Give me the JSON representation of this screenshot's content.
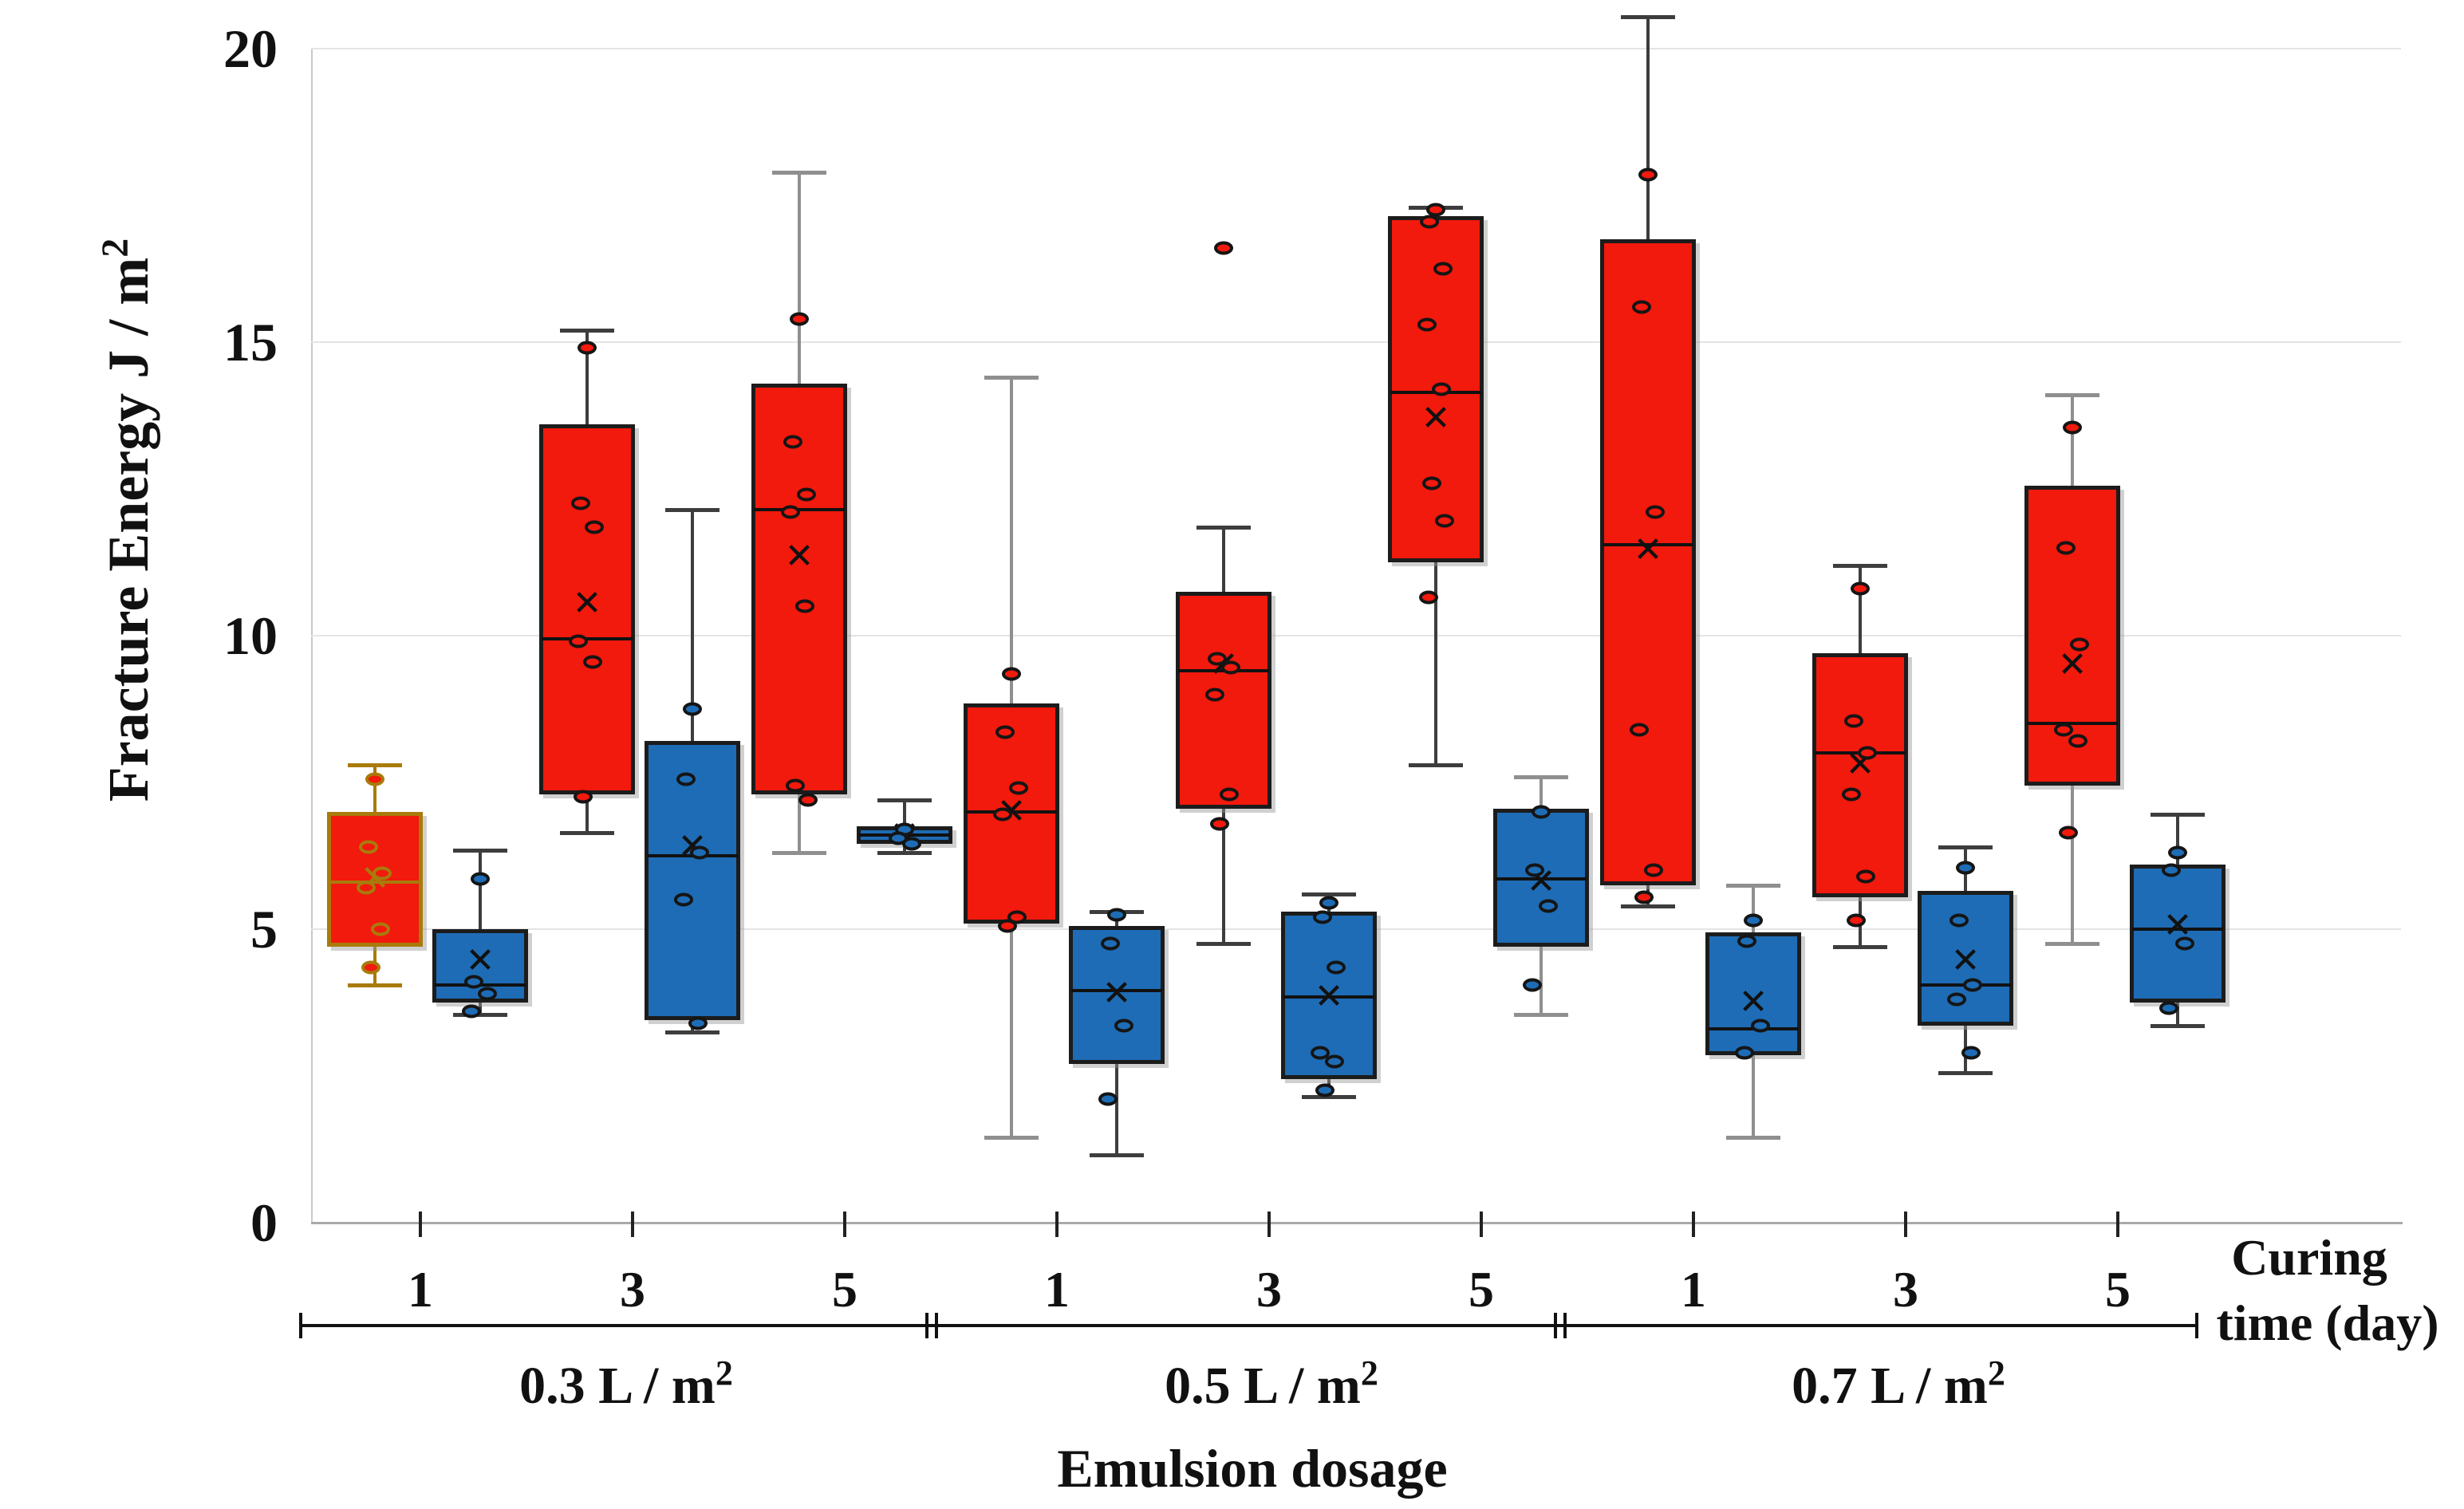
{
  "chart": {
    "superscript": "2",
    "ylabel_base": "Fracture Energy J / m",
    "xlabel": "Emulsion dosage",
    "right_axis_label_line1": "Curing",
    "right_axis_label_line2": "time (day)",
    "groups": [
      {
        "label_base": "0.3 L / m",
        "curing_days": [
          "1",
          "3",
          "5"
        ]
      },
      {
        "label_base": "0.5 L / m",
        "curing_days": [
          "1",
          "3",
          "5"
        ]
      },
      {
        "label_base": "0.7 L / m",
        "curing_days": [
          "1",
          "3",
          "5"
        ]
      }
    ]
  },
  "chart_data": {
    "type": "boxplot",
    "ylabel": "Fracture Energy J / m2",
    "xlabel": "Emulsion dosage",
    "x_axis_note": "Curing time (day)",
    "ylim": [
      0,
      20.5
    ],
    "y_ticks": [
      0,
      5,
      10,
      15,
      20
    ],
    "dosages": [
      "0.3",
      "0.5",
      "0.7"
    ],
    "days": [
      "1",
      "3",
      "5"
    ],
    "colors": {
      "red_fill": "#f2190d",
      "blue_fill": "#1e6cb5",
      "box_border": "#1c1c1c",
      "orange_border": "#a87b0b",
      "whisker_dark": "#3d3d3d",
      "whisker_gray": "#8f8f8f"
    },
    "boxes": [
      {
        "dosage": "0.3",
        "day": "1",
        "series": "red",
        "whisker_low": 4.05,
        "q1": 4.7,
        "median": 5.8,
        "q3": 7.0,
        "whisker_high": 7.8,
        "mean": 5.85,
        "points": [
          7.55,
          6.4,
          5.95,
          5.7,
          5.0,
          4.35
        ],
        "style": "orange"
      },
      {
        "dosage": "0.3",
        "day": "1",
        "series": "blue",
        "whisker_low": 3.55,
        "q1": 3.75,
        "median": 4.05,
        "q3": 5.0,
        "whisker_high": 6.35,
        "mean": 4.45,
        "points": [
          5.85,
          4.1,
          3.9,
          3.6
        ]
      },
      {
        "dosage": "0.3",
        "day": "3",
        "series": "red",
        "whisker_low": 6.65,
        "q1": 7.3,
        "median": 9.95,
        "q3": 13.6,
        "whisker_high": 15.2,
        "mean": 10.55,
        "points": [
          14.9,
          12.25,
          11.85,
          9.9,
          9.55,
          7.25
        ]
      },
      {
        "dosage": "0.3",
        "day": "3",
        "series": "blue",
        "whisker_low": 3.25,
        "q1": 3.45,
        "median": 6.25,
        "q3": 8.2,
        "whisker_high": 12.15,
        "mean": 6.4,
        "points": [
          8.75,
          7.55,
          6.3,
          5.5,
          3.4
        ]
      },
      {
        "dosage": "0.3",
        "day": "5",
        "series": "red",
        "whisker_low": 6.3,
        "q1": 7.3,
        "median": 12.15,
        "q3": 14.3,
        "whisker_high": 17.9,
        "mean": 11.35,
        "points": [
          15.4,
          13.3,
          12.4,
          12.1,
          10.5,
          7.45,
          7.2
        ],
        "whisker": "gray"
      },
      {
        "dosage": "0.3",
        "day": "5",
        "series": "blue",
        "whisker_low": 6.3,
        "q1": 6.45,
        "median": 6.6,
        "q3": 6.75,
        "whisker_high": 7.2,
        "mean": 6.6,
        "points": [
          6.7,
          6.55,
          6.45
        ]
      },
      {
        "dosage": "0.5",
        "day": "1",
        "series": "red",
        "whisker_low": 1.45,
        "q1": 5.1,
        "median": 7.0,
        "q3": 8.85,
        "whisker_high": 14.4,
        "mean": 7.0,
        "points": [
          9.35,
          8.35,
          7.4,
          6.95,
          5.2,
          5.05
        ],
        "whisker": "gray"
      },
      {
        "dosage": "0.5",
        "day": "1",
        "series": "blue",
        "whisker_low": 1.15,
        "q1": 2.7,
        "median": 3.95,
        "q3": 5.05,
        "whisker_high": 5.3,
        "mean": 3.9,
        "points": [
          5.25,
          4.75,
          3.35,
          2.1
        ]
      },
      {
        "dosage": "0.5",
        "day": "3",
        "series": "red",
        "whisker_low": 4.75,
        "q1": 7.05,
        "median": 9.4,
        "q3": 10.75,
        "whisker_high": 11.85,
        "mean": 9.5,
        "points": [
          16.6,
          9.6,
          9.45,
          9.0,
          7.3,
          6.8
        ]
      },
      {
        "dosage": "0.5",
        "day": "3",
        "series": "blue",
        "whisker_low": 2.15,
        "q1": 2.45,
        "median": 3.85,
        "q3": 5.3,
        "whisker_high": 5.6,
        "mean": 3.85,
        "points": [
          5.45,
          5.2,
          4.35,
          2.9,
          2.75,
          2.25
        ]
      },
      {
        "dosage": "0.5",
        "day": "5",
        "series": "red",
        "whisker_low": 7.8,
        "q1": 11.25,
        "median": 14.15,
        "q3": 17.15,
        "whisker_high": 17.3,
        "mean": 13.7,
        "points": [
          17.25,
          17.05,
          16.25,
          15.3,
          14.2,
          12.6,
          11.95,
          10.65
        ]
      },
      {
        "dosage": "0.5",
        "day": "5",
        "series": "blue",
        "whisker_low": 3.55,
        "q1": 4.7,
        "median": 5.85,
        "q3": 7.05,
        "whisker_high": 7.6,
        "mean": 5.8,
        "points": [
          7.0,
          6.0,
          5.4,
          4.05
        ],
        "whisker": "gray"
      },
      {
        "dosage": "0.7",
        "day": "1",
        "series": "red",
        "whisker_low": 5.4,
        "q1": 5.75,
        "median": 11.55,
        "q3": 16.75,
        "whisker_high": 20.55,
        "mean": 11.45,
        "points": [
          17.85,
          15.6,
          12.1,
          8.4,
          6.0,
          5.55
        ]
      },
      {
        "dosage": "0.7",
        "day": "1",
        "series": "blue",
        "whisker_low": 1.45,
        "q1": 2.85,
        "median": 3.3,
        "q3": 4.95,
        "whisker_high": 5.75,
        "mean": 3.75,
        "points": [
          5.15,
          4.8,
          3.35,
          2.9
        ],
        "whisker": "gray"
      },
      {
        "dosage": "0.7",
        "day": "3",
        "series": "red",
        "whisker_low": 4.7,
        "q1": 5.55,
        "median": 8.0,
        "q3": 9.7,
        "whisker_high": 11.2,
        "mean": 7.8,
        "points": [
          10.8,
          8.55,
          8.0,
          7.3,
          5.9,
          5.15
        ]
      },
      {
        "dosage": "0.7",
        "day": "3",
        "series": "blue",
        "whisker_low": 2.55,
        "q1": 3.35,
        "median": 4.05,
        "q3": 5.65,
        "whisker_high": 6.4,
        "mean": 4.45,
        "points": [
          6.05,
          5.15,
          4.05,
          3.8,
          2.9
        ]
      },
      {
        "dosage": "0.7",
        "day": "5",
        "series": "red",
        "whisker_low": 4.75,
        "q1": 7.45,
        "median": 8.5,
        "q3": 12.55,
        "whisker_high": 14.1,
        "mean": 9.5,
        "points": [
          13.55,
          11.5,
          9.85,
          8.4,
          8.2,
          6.65
        ],
        "whisker": "gray"
      },
      {
        "dosage": "0.7",
        "day": "5",
        "series": "blue",
        "whisker_low": 3.35,
        "q1": 3.75,
        "median": 5.0,
        "q3": 6.1,
        "whisker_high": 6.95,
        "mean": 5.05,
        "points": [
          6.3,
          6.0,
          4.75,
          3.65
        ]
      }
    ]
  }
}
